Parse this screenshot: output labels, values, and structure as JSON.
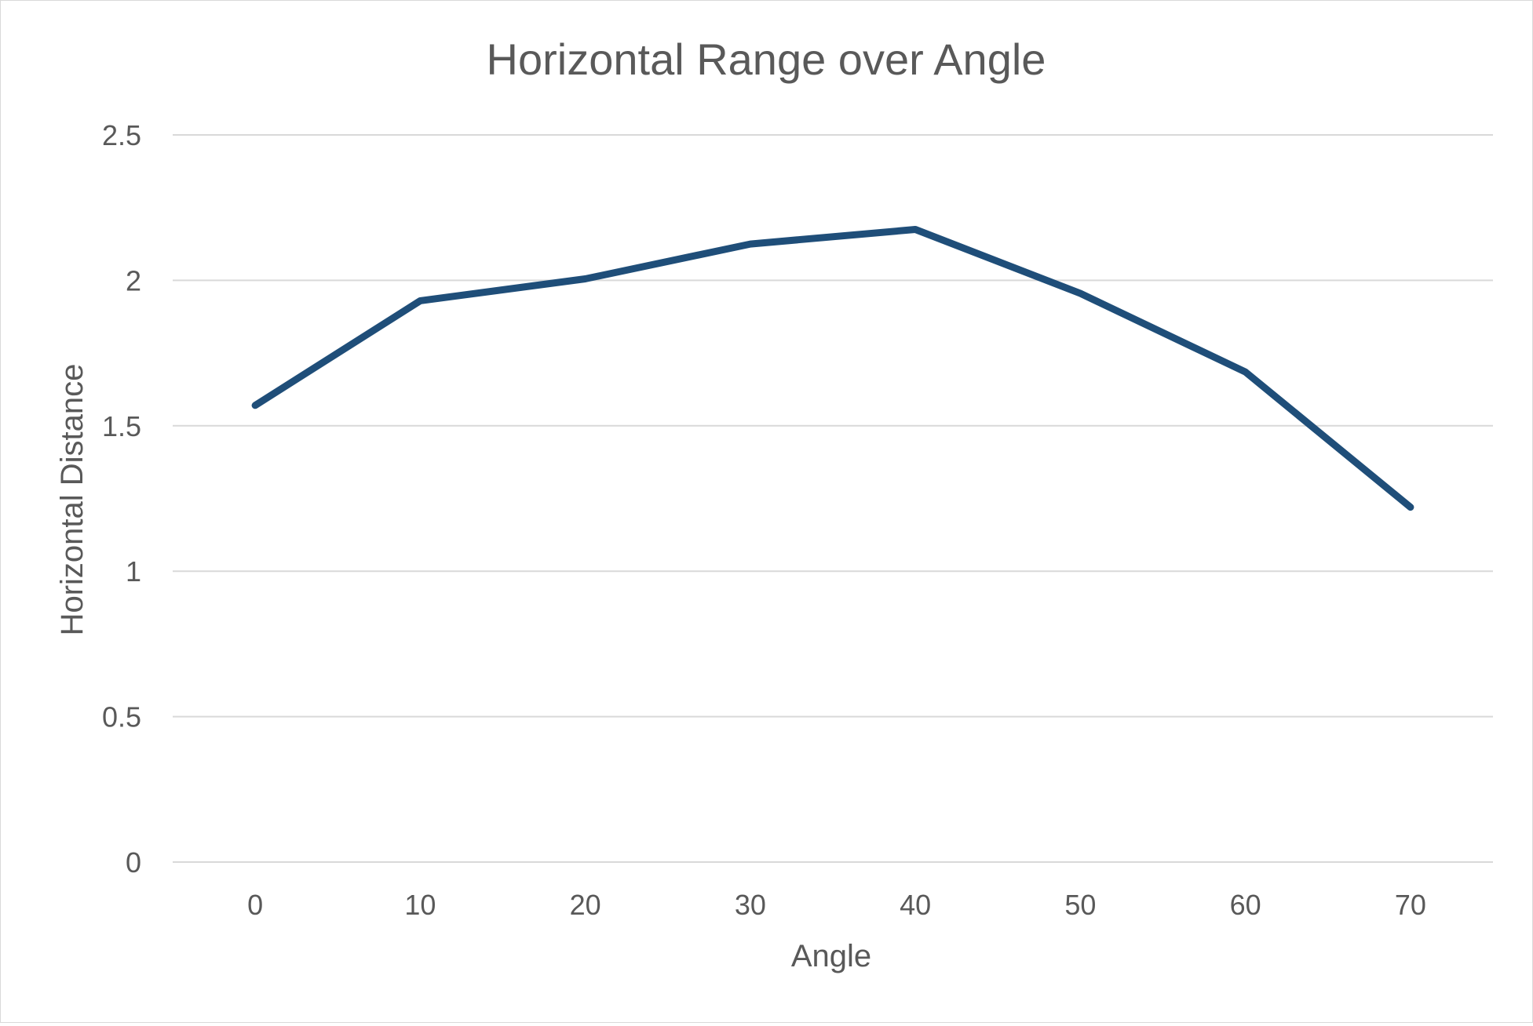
{
  "chart_data": {
    "type": "line",
    "title": "Horizontal Range over Angle",
    "xlabel": "Angle",
    "ylabel": "Horizontal Distance",
    "categories": [
      "0",
      "10",
      "20",
      "30",
      "40",
      "50",
      "60",
      "70"
    ],
    "series": [
      {
        "values": [
          1.57,
          1.93,
          2.005,
          2.125,
          2.175,
          1.955,
          1.685,
          1.22
        ],
        "color": "#1f4e79"
      }
    ],
    "y_ticks": [
      "0",
      "0.5",
      "1",
      "1.5",
      "2",
      "2.5"
    ],
    "ylim": [
      0,
      2.5
    ],
    "grid": true,
    "gridline_color": "#d9d9d9",
    "text_color": "#595959",
    "legend": "none"
  }
}
